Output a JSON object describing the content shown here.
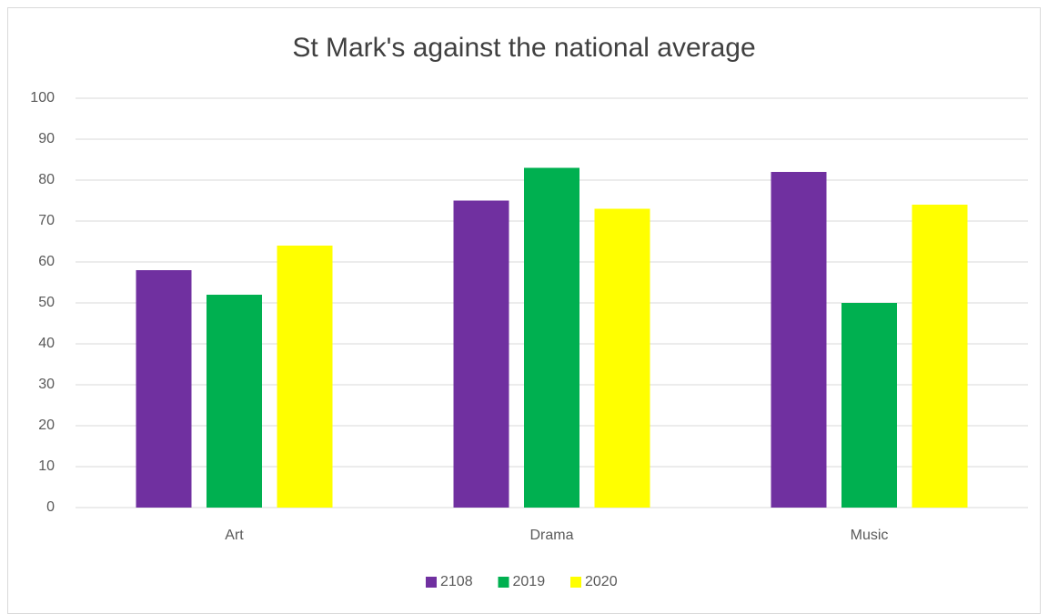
{
  "chart_data": {
    "type": "bar",
    "title": "St Mark's against the national average",
    "categories": [
      "Art",
      "Drama",
      "Music"
    ],
    "series": [
      {
        "name": "2108",
        "color": "#7030a0",
        "values": [
          58,
          75,
          82
        ]
      },
      {
        "name": "2019",
        "color": "#00b050",
        "values": [
          52,
          83,
          50
        ]
      },
      {
        "name": "2020",
        "color": "#ffff00",
        "values": [
          64,
          73,
          74
        ]
      }
    ],
    "ylim": [
      0,
      100
    ],
    "yticks": [
      0,
      10,
      20,
      30,
      40,
      50,
      60,
      70,
      80,
      90,
      100
    ],
    "grid": true,
    "legend": "bottom"
  }
}
